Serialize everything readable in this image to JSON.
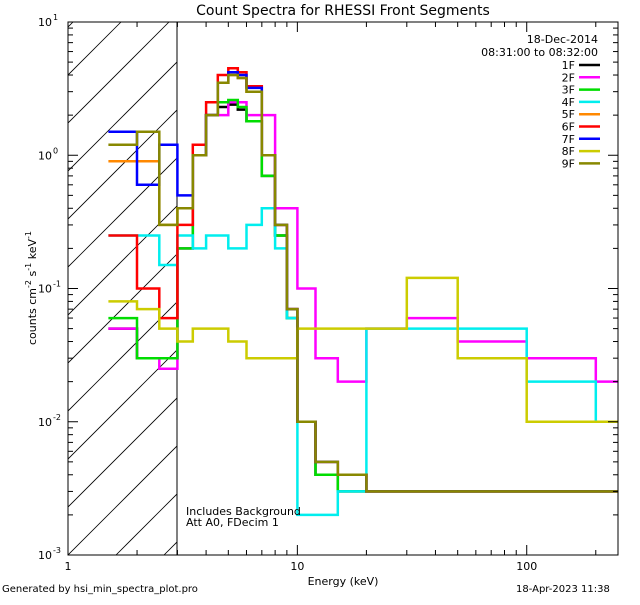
{
  "chart_data": {
    "type": "line",
    "title": "Count Spectra for RHESSI Front Segments",
    "xlabel": "Energy (keV)",
    "ylabel_parts": [
      "counts cm",
      "-2",
      " s",
      "-1",
      " keV",
      "-1"
    ],
    "x_scale": "log",
    "y_scale": "log",
    "xlim": [
      1,
      250
    ],
    "ylim": [
      0.001,
      10
    ],
    "x_ticks": [
      {
        "value": 1,
        "label": "1"
      },
      {
        "value": 10,
        "label": "10"
      },
      {
        "value": 100,
        "label": "100"
      }
    ],
    "y_ticks": [
      {
        "value": 0.001,
        "base": "10",
        "exp": "-3"
      },
      {
        "value": 0.01,
        "base": "10",
        "exp": "-2"
      },
      {
        "value": 0.1,
        "base": "10",
        "exp": "-1"
      },
      {
        "value": 1,
        "base": "10",
        "exp": "0"
      },
      {
        "value": 10,
        "base": "10",
        "exp": "1"
      }
    ],
    "hatched_region_keV": [
      1,
      3
    ],
    "legend_position": "top-right",
    "date": "18-Dec-2014",
    "time_range": "08:31:00 to 08:32:00",
    "annotations": [
      "Includes Background",
      "Att A0, FDecim 1"
    ],
    "series": [
      {
        "name": "1F",
        "color": "#000000",
        "x": [
          1.5,
          2,
          2.5,
          3,
          3.5,
          4,
          4.5,
          5,
          5.5,
          6,
          7,
          8,
          9,
          10,
          12,
          15,
          20,
          30,
          50,
          100,
          200
        ],
        "y": [
          0.05,
          0.03,
          0.03,
          0.2,
          1.0,
          2.0,
          2.3,
          2.4,
          2.2,
          1.8,
          0.7,
          0.25,
          0.06,
          0.01,
          0.004,
          0.003,
          0.003,
          0.003,
          0.003,
          0.003,
          0.003
        ]
      },
      {
        "name": "2F",
        "color": "#ff00ff",
        "x": [
          1.5,
          2,
          2.5,
          3,
          3.5,
          4,
          5,
          6,
          8,
          10,
          12,
          15,
          20,
          30,
          50,
          100,
          200
        ],
        "y": [
          0.05,
          0.03,
          0.025,
          0.2,
          1.0,
          2.0,
          2.5,
          2.0,
          0.4,
          0.1,
          0.03,
          0.02,
          0.05,
          0.06,
          0.04,
          0.03,
          0.02
        ]
      },
      {
        "name": "3F",
        "color": "#00dd00",
        "x": [
          1.5,
          2,
          2.5,
          3,
          3.5,
          4,
          4.5,
          5,
          5.5,
          6,
          7,
          8,
          9,
          10,
          12,
          15,
          20,
          30,
          50,
          100,
          200
        ],
        "y": [
          0.06,
          0.03,
          0.03,
          0.2,
          1.0,
          2.0,
          2.5,
          2.6,
          2.3,
          1.8,
          0.7,
          0.25,
          0.06,
          0.01,
          0.004,
          0.003,
          0.003,
          0.003,
          0.003,
          0.003,
          0.003
        ]
      },
      {
        "name": "4F",
        "color": "#00eeee",
        "x": [
          1.5,
          2,
          2.5,
          3,
          3.5,
          4,
          5,
          6,
          7,
          8,
          9,
          10,
          12,
          15,
          20,
          30,
          50,
          100,
          200
        ],
        "y": [
          0.25,
          0.25,
          0.15,
          0.25,
          0.2,
          0.25,
          0.2,
          0.3,
          0.4,
          0.2,
          0.06,
          0.002,
          0.002,
          0.003,
          0.05,
          0.05,
          0.05,
          0.02,
          0.01
        ]
      },
      {
        "name": "5F",
        "color": "#ff8800",
        "x": [
          1.5,
          2,
          2.5,
          3,
          3.5,
          4,
          4.5,
          5,
          5.5,
          6,
          7,
          8,
          9,
          10,
          12,
          15,
          20,
          30,
          50,
          100,
          200
        ],
        "y": [
          0.9,
          0.9,
          0.3,
          0.4,
          1.0,
          2.0,
          3.5,
          4.0,
          3.8,
          3.0,
          1.0,
          0.3,
          0.07,
          0.01,
          0.005,
          0.004,
          0.003,
          0.003,
          0.003,
          0.003,
          0.003
        ]
      },
      {
        "name": "6F",
        "color": "#ff0000",
        "x": [
          1.5,
          2,
          2.5,
          3,
          3.5,
          4,
          4.5,
          5,
          5.5,
          6,
          7,
          8,
          9,
          10,
          12,
          15,
          20,
          30,
          50,
          100,
          200
        ],
        "y": [
          0.25,
          0.1,
          0.06,
          0.3,
          1.2,
          2.5,
          4.0,
          4.5,
          4.2,
          3.3,
          1.0,
          0.3,
          0.07,
          0.01,
          0.005,
          0.004,
          0.003,
          0.003,
          0.003,
          0.003,
          0.003
        ]
      },
      {
        "name": "7F",
        "color": "#0000ff",
        "x": [
          1.5,
          2,
          2.5,
          3,
          3.5,
          4,
          4.5,
          5,
          5.5,
          6,
          7,
          8,
          9,
          10,
          12,
          15,
          20,
          30,
          50,
          100,
          200
        ],
        "y": [
          1.5,
          0.6,
          1.2,
          0.5,
          1.0,
          2.0,
          3.5,
          4.2,
          4.0,
          3.2,
          1.0,
          0.3,
          0.07,
          0.01,
          0.005,
          0.004,
          0.003,
          0.003,
          0.003,
          0.003,
          0.003
        ]
      },
      {
        "name": "8F",
        "color": "#cccc00",
        "x": [
          1.5,
          2,
          2.5,
          3,
          3.5,
          4,
          5,
          6,
          8,
          10,
          12,
          15,
          20,
          30,
          50,
          100,
          200
        ],
        "y": [
          0.08,
          0.07,
          0.05,
          0.04,
          0.05,
          0.05,
          0.04,
          0.03,
          0.03,
          0.05,
          0.05,
          0.05,
          0.05,
          0.12,
          0.03,
          0.01,
          0.01
        ]
      },
      {
        "name": "9F",
        "color": "#888800",
        "x": [
          1.5,
          2,
          2.5,
          3,
          3.5,
          4,
          4.5,
          5,
          5.5,
          6,
          7,
          8,
          9,
          10,
          12,
          15,
          20,
          30,
          50,
          100,
          200
        ],
        "y": [
          1.2,
          1.5,
          0.3,
          0.4,
          1.0,
          2.0,
          3.5,
          4.0,
          3.8,
          3.0,
          1.0,
          0.3,
          0.07,
          0.01,
          0.005,
          0.004,
          0.003,
          0.003,
          0.003,
          0.003,
          0.003
        ]
      }
    ]
  },
  "footer": {
    "left": "Generated by hsi_min_spectra_plot.pro",
    "right": "18-Apr-2023 11:38"
  }
}
